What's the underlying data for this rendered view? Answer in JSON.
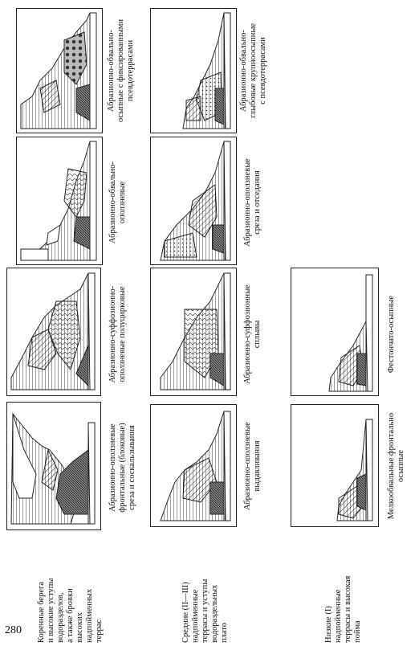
{
  "page_number": "280",
  "rows": [
    {
      "label": "Коренные берега\nи высокие уступы\nводоразделов,\nа также бровки\nвысоких\nнадпойменных\nтеррас",
      "cells": [
        {
          "caption": "Абразионно-оползневые\nфронтальные (блоковые)\nсреза и соскальзывания"
        },
        {
          "caption": "Абразионно-суффозионно-\nоползневые полуцирковые"
        },
        {
          "caption": "Абразионно-обвально-\nоползневые"
        },
        {
          "caption": "Абразионно-обвально-\nосыпные с фиксированными\nпсевдотеррасами"
        }
      ]
    },
    {
      "label": "Средние (II—III)\nнадпойменные\nтеррасы и уступы\nводораздельных\nплато",
      "cells": [
        {
          "caption": "Абразионно-оползневые\nвыдавливания"
        },
        {
          "caption": "Абразионно-суффозионные\nсплывы"
        },
        {
          "caption": "Абразионно-оползневые\nсреза и отседания"
        },
        {
          "caption": "Абразионно-обвально-\nглыбовые крупноосыпные\nс псевдотеррасами"
        }
      ]
    },
    {
      "label": "Низкие (I)\nнадпойменные\nтеррасы и высокая\nпойма",
      "cells": [
        {
          "caption": "Мелкообвальные фронтально\nосыпные"
        },
        {
          "caption": "Фестончато-осыпные"
        }
      ]
    }
  ]
}
